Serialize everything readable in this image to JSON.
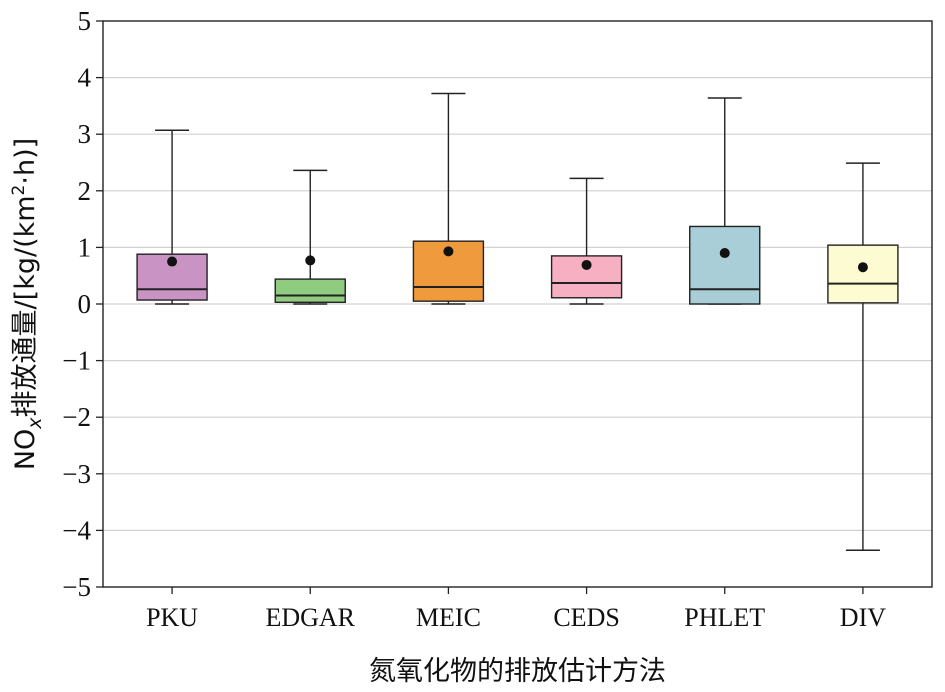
{
  "chart_data": {
    "type": "boxplot",
    "xlabel": "氮氧化物的排放估计方法",
    "ylabel": {
      "prefix": "NO",
      "subscript": "x",
      "mid": "排放通量/[kg/(km",
      "superscript": "2",
      "suffix": "·h)]"
    },
    "ylim": [
      -5,
      5
    ],
    "yticks": [
      5,
      4,
      3,
      2,
      1,
      0,
      -1,
      -2,
      -3,
      -4,
      -5
    ],
    "ytick_labels": [
      "5",
      "4",
      "3",
      "2",
      "1",
      "0",
      "−1",
      "−2",
      "−3",
      "−4",
      "−5"
    ],
    "grid": true,
    "categories": [
      "PKU",
      "EDGAR",
      "MEIC",
      "CEDS",
      "PHLET",
      "DIV"
    ],
    "boxes": [
      {
        "name": "PKU",
        "whisker_low": 0.0,
        "q1": 0.07,
        "median": 0.26,
        "q3": 0.88,
        "whisker_high": 3.07,
        "mean": 0.75,
        "color": "#c993c4"
      },
      {
        "name": "EDGAR",
        "whisker_low": 0.0,
        "q1": 0.03,
        "median": 0.15,
        "q3": 0.44,
        "whisker_high": 2.36,
        "mean": 0.77,
        "color": "#8fcc80"
      },
      {
        "name": "MEIC",
        "whisker_low": 0.0,
        "q1": 0.05,
        "median": 0.3,
        "q3": 1.11,
        "whisker_high": 3.72,
        "mean": 0.93,
        "color": "#f09a3e"
      },
      {
        "name": "CEDS",
        "whisker_low": 0.0,
        "q1": 0.11,
        "median": 0.37,
        "q3": 0.85,
        "whisker_high": 2.22,
        "mean": 0.69,
        "color": "#f7afc2"
      },
      {
        "name": "PHLET",
        "whisker_low": 0.0,
        "q1": 0.0,
        "median": 0.26,
        "q3": 1.37,
        "whisker_high": 3.64,
        "mean": 0.9,
        "color": "#a9ced8"
      },
      {
        "name": "DIV",
        "whisker_low": -4.35,
        "q1": 0.02,
        "median": 0.36,
        "q3": 1.04,
        "whisker_high": 2.49,
        "mean": 0.65,
        "color": "#fcfbd2"
      }
    ]
  }
}
